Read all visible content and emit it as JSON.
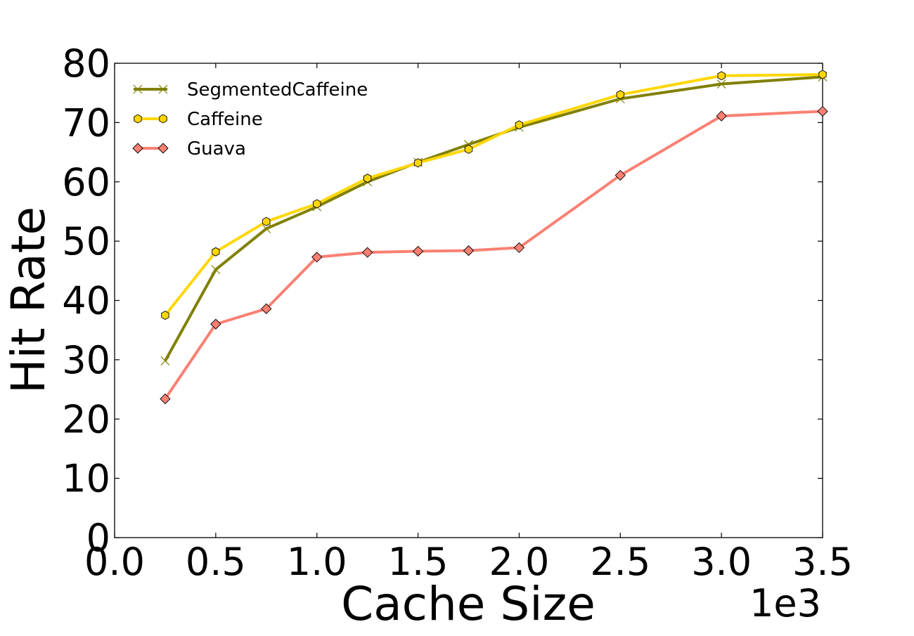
{
  "chart_data": {
    "type": "line",
    "xlabel": "Cache Size",
    "ylabel": "Hit Rate",
    "x_offset_label": "1e3",
    "xlim": [
      0,
      3.5
    ],
    "ylim": [
      0,
      80
    ],
    "x_ticks": [
      "0.0",
      "0.5",
      "1.0",
      "1.5",
      "2.0",
      "2.5",
      "3.0",
      "3.5"
    ],
    "y_ticks": [
      "0",
      "10",
      "20",
      "30",
      "40",
      "50",
      "60",
      "70",
      "80"
    ],
    "grid": false,
    "legend_position": "top-left",
    "x": [
      0.25,
      0.5,
      0.75,
      1.0,
      1.25,
      1.5,
      1.75,
      2.0,
      2.5,
      3.0,
      3.5
    ],
    "series": [
      {
        "name": "SegmentedCaffeine",
        "color": "#808000",
        "marker": "x",
        "values": [
          29.8,
          45.2,
          52.1,
          55.8,
          60.0,
          63.3,
          66.3,
          69.2,
          74.0,
          76.5,
          77.7
        ]
      },
      {
        "name": "Caffeine",
        "color": "#FFD700",
        "marker": "hexagon",
        "values": [
          37.5,
          48.2,
          53.3,
          56.3,
          60.6,
          63.2,
          65.5,
          69.6,
          74.7,
          77.9,
          78.1
        ]
      },
      {
        "name": "Guava",
        "color": "#FA8072",
        "marker": "diamond",
        "values": [
          23.4,
          36.0,
          38.6,
          47.3,
          48.1,
          48.3,
          48.4,
          48.9,
          61.1,
          71.1,
          71.9
        ]
      }
    ]
  }
}
